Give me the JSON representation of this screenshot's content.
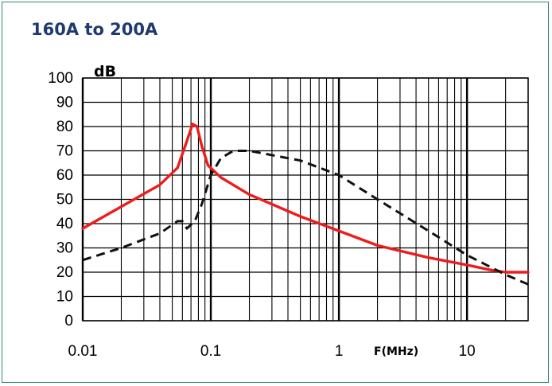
{
  "chart_data": {
    "type": "line",
    "title": "160A to 200A",
    "xlabel": "F(MHz)",
    "ylabel": "dB",
    "x_scale": "log",
    "xlim": [
      0.01,
      30
    ],
    "ylim": [
      0,
      100
    ],
    "x_ticks": [
      "0.01",
      "0.1",
      "1",
      "10"
    ],
    "y_ticks": [
      "0",
      "10",
      "20",
      "30",
      "40",
      "50",
      "60",
      "70",
      "80",
      "90",
      "100"
    ],
    "grid": true,
    "colors": {
      "solid": "#ee1c1c",
      "dashed": "#111111"
    },
    "series": [
      {
        "style": "solid",
        "points": [
          [
            0.01,
            38
          ],
          [
            0.02,
            47
          ],
          [
            0.04,
            56
          ],
          [
            0.055,
            63
          ],
          [
            0.065,
            74
          ],
          [
            0.072,
            81
          ],
          [
            0.078,
            80
          ],
          [
            0.085,
            72
          ],
          [
            0.095,
            64
          ],
          [
            0.12,
            59
          ],
          [
            0.2,
            52
          ],
          [
            0.5,
            43
          ],
          [
            1,
            37
          ],
          [
            2,
            31
          ],
          [
            5,
            26
          ],
          [
            10,
            23
          ],
          [
            15,
            21
          ],
          [
            20,
            20
          ],
          [
            30,
            20
          ]
        ]
      },
      {
        "style": "dashed",
        "points": [
          [
            0.01,
            25
          ],
          [
            0.02,
            30
          ],
          [
            0.04,
            36
          ],
          [
            0.055,
            41
          ],
          [
            0.06,
            41
          ],
          [
            0.065,
            38
          ],
          [
            0.075,
            41
          ],
          [
            0.085,
            48
          ],
          [
            0.1,
            60
          ],
          [
            0.12,
            67
          ],
          [
            0.15,
            70
          ],
          [
            0.2,
            70
          ],
          [
            0.5,
            66
          ],
          [
            1,
            60
          ],
          [
            2,
            50
          ],
          [
            5,
            37
          ],
          [
            10,
            27
          ],
          [
            20,
            19
          ],
          [
            30,
            15
          ]
        ]
      }
    ]
  }
}
